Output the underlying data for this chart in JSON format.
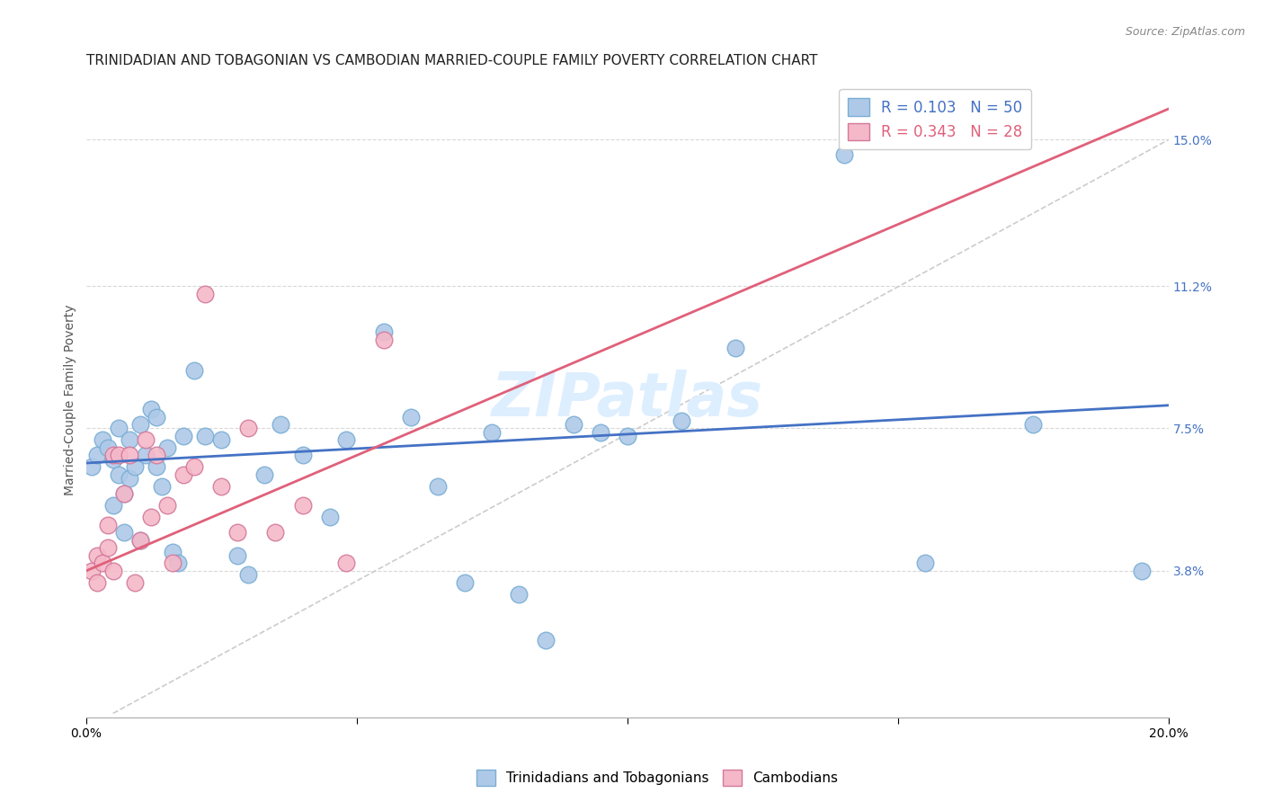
{
  "title": "TRINIDADIAN AND TOBAGONIAN VS CAMBODIAN MARRIED-COUPLE FAMILY POVERTY CORRELATION CHART",
  "source": "Source: ZipAtlas.com",
  "ylabel": "Married-Couple Family Poverty",
  "xlim": [
    0.0,
    0.2
  ],
  "ylim": [
    0.0,
    0.165
  ],
  "ytick_positions": [
    0.038,
    0.075,
    0.112,
    0.15
  ],
  "ytick_labels": [
    "3.8%",
    "7.5%",
    "11.2%",
    "15.0%"
  ],
  "blue_R": "0.103",
  "blue_N": "50",
  "pink_R": "0.343",
  "pink_N": "28",
  "blue_color": "#aec9e8",
  "blue_edge": "#7aaed4",
  "blue_line_color": "#4472c4",
  "pink_color": "#f4b8c8",
  "pink_edge": "#d4789a",
  "pink_line_color": "#e0607a",
  "ref_line_color": "#cccccc",
  "grid_color": "#d8d8d8",
  "watermark_color": "#ddeeff",
  "blue_x": [
    0.001,
    0.002,
    0.003,
    0.004,
    0.005,
    0.005,
    0.006,
    0.006,
    0.007,
    0.007,
    0.008,
    0.008,
    0.009,
    0.01,
    0.01,
    0.011,
    0.012,
    0.013,
    0.013,
    0.014,
    0.015,
    0.016,
    0.017,
    0.018,
    0.02,
    0.022,
    0.025,
    0.028,
    0.03,
    0.033,
    0.036,
    0.04,
    0.045,
    0.048,
    0.055,
    0.06,
    0.065,
    0.07,
    0.075,
    0.08,
    0.085,
    0.09,
    0.095,
    0.1,
    0.11,
    0.12,
    0.14,
    0.155,
    0.175,
    0.195
  ],
  "blue_y": [
    0.065,
    0.068,
    0.072,
    0.07,
    0.067,
    0.055,
    0.063,
    0.075,
    0.058,
    0.048,
    0.072,
    0.062,
    0.065,
    0.046,
    0.076,
    0.068,
    0.08,
    0.078,
    0.065,
    0.06,
    0.07,
    0.043,
    0.04,
    0.073,
    0.09,
    0.073,
    0.072,
    0.042,
    0.037,
    0.063,
    0.076,
    0.068,
    0.052,
    0.072,
    0.1,
    0.078,
    0.06,
    0.035,
    0.074,
    0.032,
    0.02,
    0.076,
    0.074,
    0.073,
    0.077,
    0.096,
    0.146,
    0.04,
    0.076,
    0.038
  ],
  "pink_x": [
    0.001,
    0.002,
    0.002,
    0.003,
    0.004,
    0.004,
    0.005,
    0.005,
    0.006,
    0.007,
    0.008,
    0.009,
    0.01,
    0.011,
    0.012,
    0.013,
    0.015,
    0.016,
    0.018,
    0.02,
    0.022,
    0.025,
    0.028,
    0.03,
    0.035,
    0.04,
    0.048,
    0.055
  ],
  "pink_y": [
    0.038,
    0.042,
    0.035,
    0.04,
    0.05,
    0.044,
    0.038,
    0.068,
    0.068,
    0.058,
    0.068,
    0.035,
    0.046,
    0.072,
    0.052,
    0.068,
    0.055,
    0.04,
    0.063,
    0.065,
    0.11,
    0.06,
    0.048,
    0.075,
    0.048,
    0.055,
    0.04,
    0.098
  ],
  "blue_intercept": 0.066,
  "blue_slope": 0.075,
  "pink_intercept": 0.038,
  "pink_slope": 0.6,
  "ref_line_x0": 0.005,
  "ref_line_y0": 0.001,
  "ref_line_x1": 0.2,
  "ref_line_y1": 0.15,
  "legend_label_blue": "Trinidadians and Tobagonians",
  "legend_label_pink": "Cambodians",
  "title_fontsize": 11,
  "axis_fontsize": 10,
  "tick_fontsize": 10
}
